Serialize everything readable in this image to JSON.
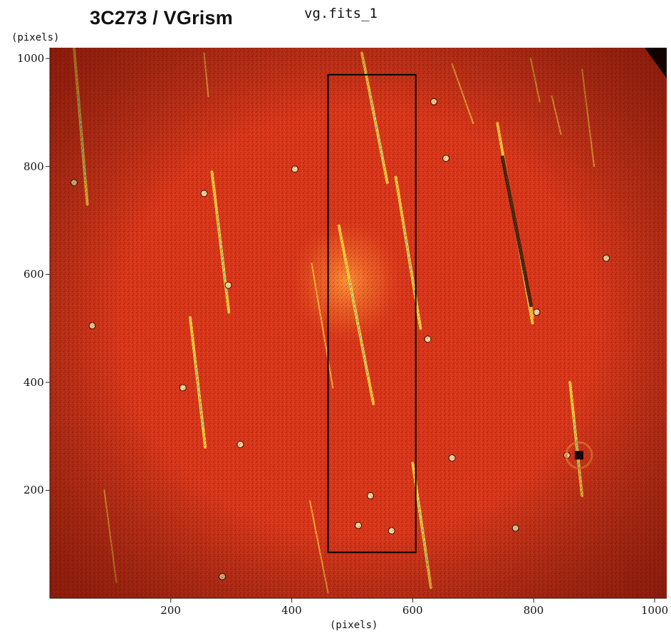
{
  "header": {
    "title": "3C273 / VGrism",
    "filename": "vg.fits_1"
  },
  "axes": {
    "x_unit": "(pixels)",
    "y_unit": "(pixels)",
    "x_ticks": [
      {
        "value": 200,
        "label": "200"
      },
      {
        "value": 400,
        "label": "400"
      },
      {
        "value": 600,
        "label": "600"
      },
      {
        "value": 800,
        "label": "800"
      },
      {
        "value": 1000,
        "label": "1000"
      }
    ],
    "y_ticks": [
      {
        "value": 200,
        "label": "200"
      },
      {
        "value": 400,
        "label": "400"
      },
      {
        "value": 600,
        "label": "600"
      },
      {
        "value": 800,
        "label": "800"
      },
      {
        "value": 1000,
        "label": "1000"
      }
    ],
    "x_range": [
      0,
      1020
    ],
    "y_range": [
      0,
      1020
    ]
  },
  "image": {
    "colormap": "red-heat",
    "colors": {
      "background": "#d8361a",
      "dark": "#9e1608",
      "spectrum_bright": "#ffd23c",
      "spectrum_core": "#63c8a0",
      "box": "#000000"
    },
    "spectra": [
      {
        "x1": 40,
        "y1": 1020,
        "x2": 62,
        "y2": 730,
        "bright": true
      },
      {
        "x1": 255,
        "y1": 1010,
        "x2": 262,
        "y2": 930,
        "bright": false
      },
      {
        "x1": 268,
        "y1": 790,
        "x2": 296,
        "y2": 530,
        "bright": true
      },
      {
        "x1": 232,
        "y1": 520,
        "x2": 257,
        "y2": 280,
        "bright": true
      },
      {
        "x1": 516,
        "y1": 1010,
        "x2": 558,
        "y2": 770,
        "bright": true
      },
      {
        "x1": 572,
        "y1": 780,
        "x2": 613,
        "y2": 500,
        "bright": true
      },
      {
        "x1": 478,
        "y1": 690,
        "x2": 535,
        "y2": 360,
        "bright": true
      },
      {
        "x1": 433,
        "y1": 620,
        "x2": 468,
        "y2": 390,
        "bright": false
      },
      {
        "x1": 740,
        "y1": 880,
        "x2": 798,
        "y2": 510,
        "bright": true
      },
      {
        "x1": 740,
        "y1": 880,
        "x2": 800,
        "y2": 520,
        "bright": false
      },
      {
        "x1": 665,
        "y1": 990,
        "x2": 700,
        "y2": 880,
        "bright": false
      },
      {
        "x1": 795,
        "y1": 1000,
        "x2": 810,
        "y2": 920,
        "bright": false
      },
      {
        "x1": 860,
        "y1": 400,
        "x2": 880,
        "y2": 190,
        "bright": true
      },
      {
        "x1": 600,
        "y1": 250,
        "x2": 630,
        "y2": 20,
        "bright": true
      },
      {
        "x1": 90,
        "y1": 200,
        "x2": 110,
        "y2": 30,
        "bright": false
      },
      {
        "x1": 430,
        "y1": 180,
        "x2": 460,
        "y2": 10,
        "bright": false
      },
      {
        "x1": 830,
        "y1": 930,
        "x2": 845,
        "y2": 860,
        "bright": false
      },
      {
        "x1": 880,
        "y1": 980,
        "x2": 900,
        "y2": 800,
        "bright": false
      }
    ],
    "stars": [
      {
        "x": 40,
        "y": 770
      },
      {
        "x": 70,
        "y": 505
      },
      {
        "x": 255,
        "y": 750
      },
      {
        "x": 295,
        "y": 580
      },
      {
        "x": 315,
        "y": 285
      },
      {
        "x": 285,
        "y": 40
      },
      {
        "x": 405,
        "y": 795
      },
      {
        "x": 220,
        "y": 390
      },
      {
        "x": 530,
        "y": 190
      },
      {
        "x": 510,
        "y": 135
      },
      {
        "x": 565,
        "y": 125
      },
      {
        "x": 635,
        "y": 920
      },
      {
        "x": 655,
        "y": 815
      },
      {
        "x": 625,
        "y": 480
      },
      {
        "x": 665,
        "y": 260
      },
      {
        "x": 855,
        "y": 265
      },
      {
        "x": 920,
        "y": 630
      },
      {
        "x": 805,
        "y": 530
      },
      {
        "x": 770,
        "y": 130
      }
    ],
    "extraction_box": {
      "x_min": 460,
      "x_max": 605,
      "y_min": 85,
      "y_max": 970
    }
  }
}
